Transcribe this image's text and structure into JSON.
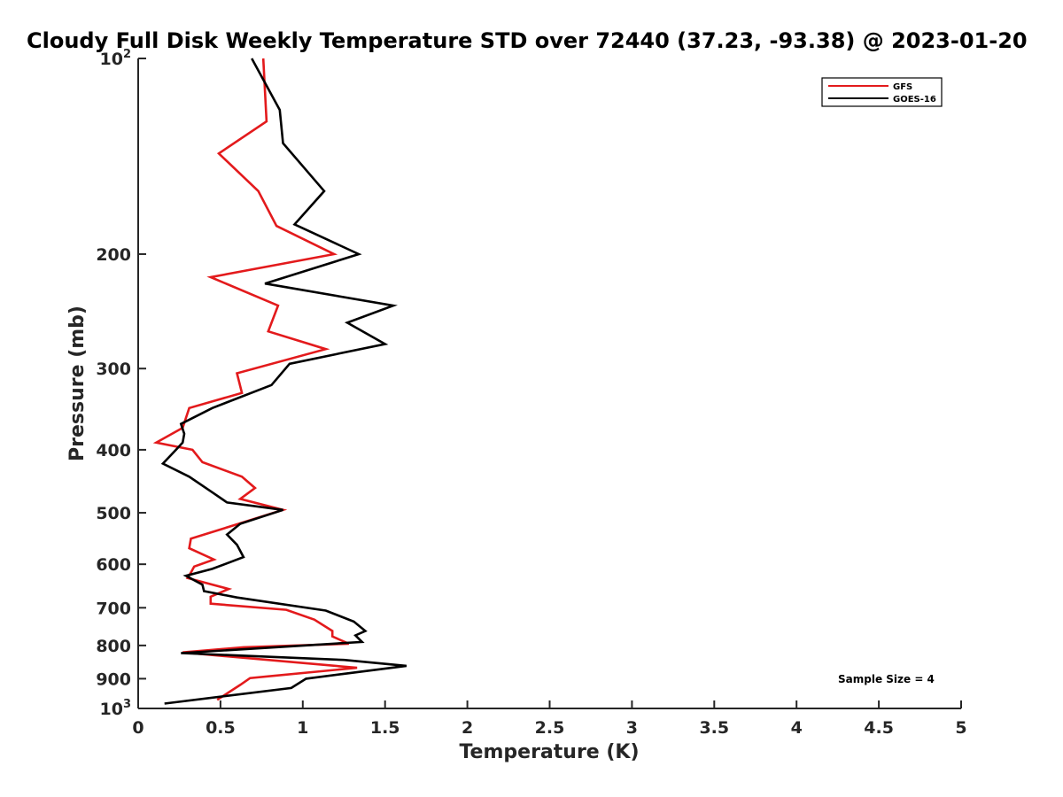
{
  "chart_data": {
    "type": "line",
    "title": "Cloudy Full Disk Weekly Temperature STD over 72440 (37.23, -93.38) @ 2023-01-20",
    "xlabel": "Temperature (K)",
    "ylabel": "Pressure (mb)",
    "xlim": [
      0,
      5
    ],
    "ylim": [
      100,
      1000
    ],
    "yscale": "log",
    "yreversed": true,
    "x_ticks": [
      "0",
      "0.5",
      "1",
      "1.5",
      "2",
      "2.5",
      "3",
      "3.5",
      "4",
      "4.5",
      "5"
    ],
    "y_ticks": [
      {
        "value": 100,
        "base": "10",
        "exp": "2"
      },
      {
        "value": 200,
        "label": "200"
      },
      {
        "value": 300,
        "label": "300"
      },
      {
        "value": 400,
        "label": "400"
      },
      {
        "value": 500,
        "label": "500"
      },
      {
        "value": 600,
        "label": "600"
      },
      {
        "value": 700,
        "label": "700"
      },
      {
        "value": 800,
        "label": "800"
      },
      {
        "value": 900,
        "label": "900"
      },
      {
        "value": 1000,
        "base": "10",
        "exp": "3"
      }
    ],
    "grid": false,
    "legend_position": "top-right",
    "annotation": "Sample Size = 4",
    "series": [
      {
        "name": "GFS",
        "color": "#e31a1c",
        "points": [
          [
            0.76,
            100
          ],
          [
            0.78,
            125
          ],
          [
            0.49,
            140
          ],
          [
            0.73,
            160
          ],
          [
            0.84,
            181
          ],
          [
            1.19,
            200
          ],
          [
            0.44,
            217
          ],
          [
            0.85,
            240
          ],
          [
            0.79,
            263
          ],
          [
            1.14,
            280
          ],
          [
            0.6,
            305
          ],
          [
            0.63,
            327
          ],
          [
            0.31,
            345
          ],
          [
            0.27,
            370
          ],
          [
            0.11,
            390
          ],
          [
            0.33,
            400
          ],
          [
            0.39,
            418
          ],
          [
            0.63,
            440
          ],
          [
            0.71,
            458
          ],
          [
            0.62,
            476
          ],
          [
            0.88,
            495
          ],
          [
            0.61,
            520
          ],
          [
            0.32,
            548
          ],
          [
            0.31,
            567
          ],
          [
            0.46,
            590
          ],
          [
            0.34,
            605
          ],
          [
            0.32,
            618
          ],
          [
            0.3,
            630
          ],
          [
            0.55,
            655
          ],
          [
            0.44,
            673
          ],
          [
            0.44,
            690
          ],
          [
            0.9,
            705
          ],
          [
            1.07,
            730
          ],
          [
            1.18,
            760
          ],
          [
            1.18,
            775
          ],
          [
            1.28,
            795
          ],
          [
            0.64,
            805
          ],
          [
            0.27,
            820
          ],
          [
            1.33,
            866
          ],
          [
            0.68,
            898
          ],
          [
            0.62,
            920
          ],
          [
            0.48,
            970
          ]
        ]
      },
      {
        "name": "GOES-16",
        "color": "#000000",
        "points": [
          [
            0.69,
            100
          ],
          [
            0.86,
            120
          ],
          [
            0.88,
            135
          ],
          [
            1.13,
            160
          ],
          [
            0.95,
            180
          ],
          [
            1.34,
            200
          ],
          [
            0.77,
            222
          ],
          [
            1.55,
            240
          ],
          [
            1.27,
            255
          ],
          [
            1.5,
            275
          ],
          [
            0.92,
            295
          ],
          [
            0.81,
            318
          ],
          [
            0.45,
            345
          ],
          [
            0.26,
            365
          ],
          [
            0.28,
            378
          ],
          [
            0.27,
            390
          ],
          [
            0.23,
            400
          ],
          [
            0.15,
            420
          ],
          [
            0.31,
            440
          ],
          [
            0.45,
            465
          ],
          [
            0.54,
            482
          ],
          [
            0.88,
            495
          ],
          [
            0.62,
            520
          ],
          [
            0.54,
            540
          ],
          [
            0.6,
            560
          ],
          [
            0.64,
            585
          ],
          [
            0.45,
            610
          ],
          [
            0.29,
            625
          ],
          [
            0.39,
            645
          ],
          [
            0.4,
            660
          ],
          [
            0.6,
            675
          ],
          [
            1.14,
            707
          ],
          [
            1.31,
            735
          ],
          [
            1.38,
            760
          ],
          [
            1.32,
            772
          ],
          [
            1.36,
            790
          ],
          [
            0.26,
            822
          ],
          [
            1.25,
            842
          ],
          [
            1.63,
            860
          ],
          [
            1.02,
            900
          ],
          [
            0.93,
            930
          ],
          [
            0.16,
            983
          ]
        ]
      }
    ]
  }
}
